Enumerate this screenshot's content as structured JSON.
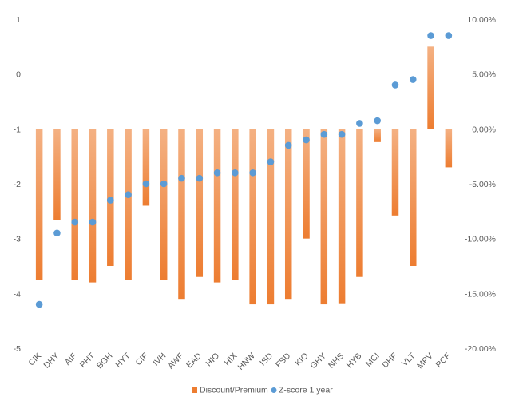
{
  "chart_data": {
    "type": "bar",
    "title": "",
    "categories": [
      "CIK",
      "DHY",
      "AIF",
      "PHT",
      "BGH",
      "HYT",
      "CIF",
      "IVH",
      "AWF",
      "EAD",
      "HIO",
      "HIX",
      "HNW",
      "ISD",
      "FSD",
      "KIO",
      "GHY",
      "NHS",
      "HYB",
      "MCI",
      "DHF",
      "VLT",
      "MPV",
      "PCF"
    ],
    "series": [
      {
        "name": "Discount/Premium",
        "kind": "bar",
        "axis": "right",
        "unit": "%",
        "values": [
          -13.8,
          -8.3,
          -13.8,
          -14.0,
          -12.5,
          -13.8,
          -7.0,
          -13.8,
          -15.5,
          -13.5,
          -14.0,
          -13.8,
          -16.0,
          -16.0,
          -15.5,
          -10.0,
          -16.0,
          -15.9,
          -13.5,
          -1.2,
          -7.9,
          -12.5,
          7.5,
          -3.5
        ]
      },
      {
        "name": "Z-score 1 year",
        "kind": "scatter",
        "axis": "left",
        "values": [
          -4.2,
          -2.9,
          -2.7,
          -2.7,
          -2.3,
          -2.2,
          -2.0,
          -2.0,
          -1.9,
          -1.9,
          -1.8,
          -1.8,
          -1.8,
          -1.6,
          -1.3,
          -1.2,
          -1.1,
          -1.1,
          -0.9,
          -0.85,
          -0.2,
          -0.1,
          0.7,
          0.7
        ]
      }
    ],
    "left_axis": {
      "ylim": [
        -5,
        1
      ],
      "ticks": [
        "1",
        "0",
        "-1",
        "-2",
        "-3",
        "-4",
        "-5"
      ],
      "tick_values": [
        1,
        0,
        -1,
        -2,
        -3,
        -4,
        -5
      ]
    },
    "right_axis": {
      "ylim": [
        -20,
        10
      ],
      "ticks": [
        "10.00%",
        "5.00%",
        "0.00%",
        "-5.00%",
        "-10.00%",
        "-15.00%",
        "-20.00%"
      ],
      "tick_values": [
        10,
        5,
        0,
        -5,
        -10,
        -15,
        -20
      ]
    },
    "grid": false,
    "legend_position": "bottom",
    "colors": {
      "bar_light": "#f4b183",
      "bar_dark": "#ed7d31",
      "dot": "#5b9bd5"
    }
  }
}
